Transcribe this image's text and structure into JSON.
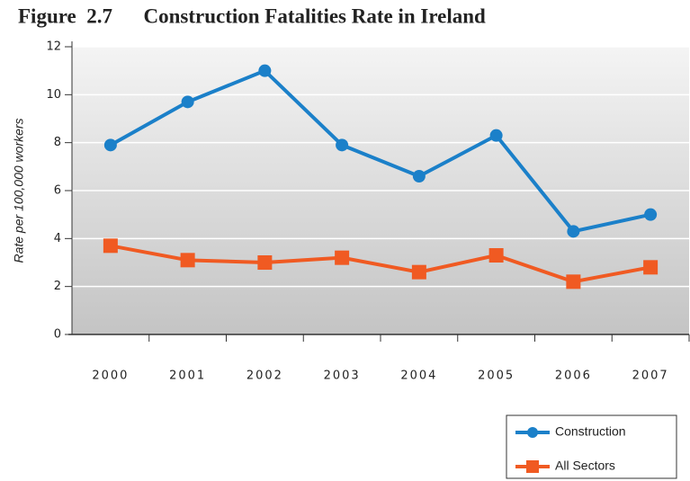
{
  "chart_data": {
    "type": "line",
    "title": "Figure  2.7      Construction Fatalities Rate in Ireland",
    "y_label": "Rate per 100,000 workers",
    "categories": [
      "2000",
      "2001",
      "2002",
      "2003",
      "2004",
      "2005",
      "2006",
      "2007"
    ],
    "series": [
      {
        "name": "Construction",
        "color": "#1b80c9",
        "values": [
          7.9,
          9.7,
          11.0,
          7.9,
          6.6,
          8.3,
          4.3,
          5.0
        ]
      },
      {
        "name": "All Sectors",
        "color": "#f05a22",
        "values": [
          3.7,
          3.1,
          3.0,
          3.2,
          2.6,
          3.3,
          2.2,
          2.8
        ]
      }
    ],
    "ylim": [
      0,
      12
    ],
    "yticks": [
      0,
      2,
      4,
      6,
      8,
      10,
      12
    ],
    "grid": true,
    "legend": "lower right"
  }
}
